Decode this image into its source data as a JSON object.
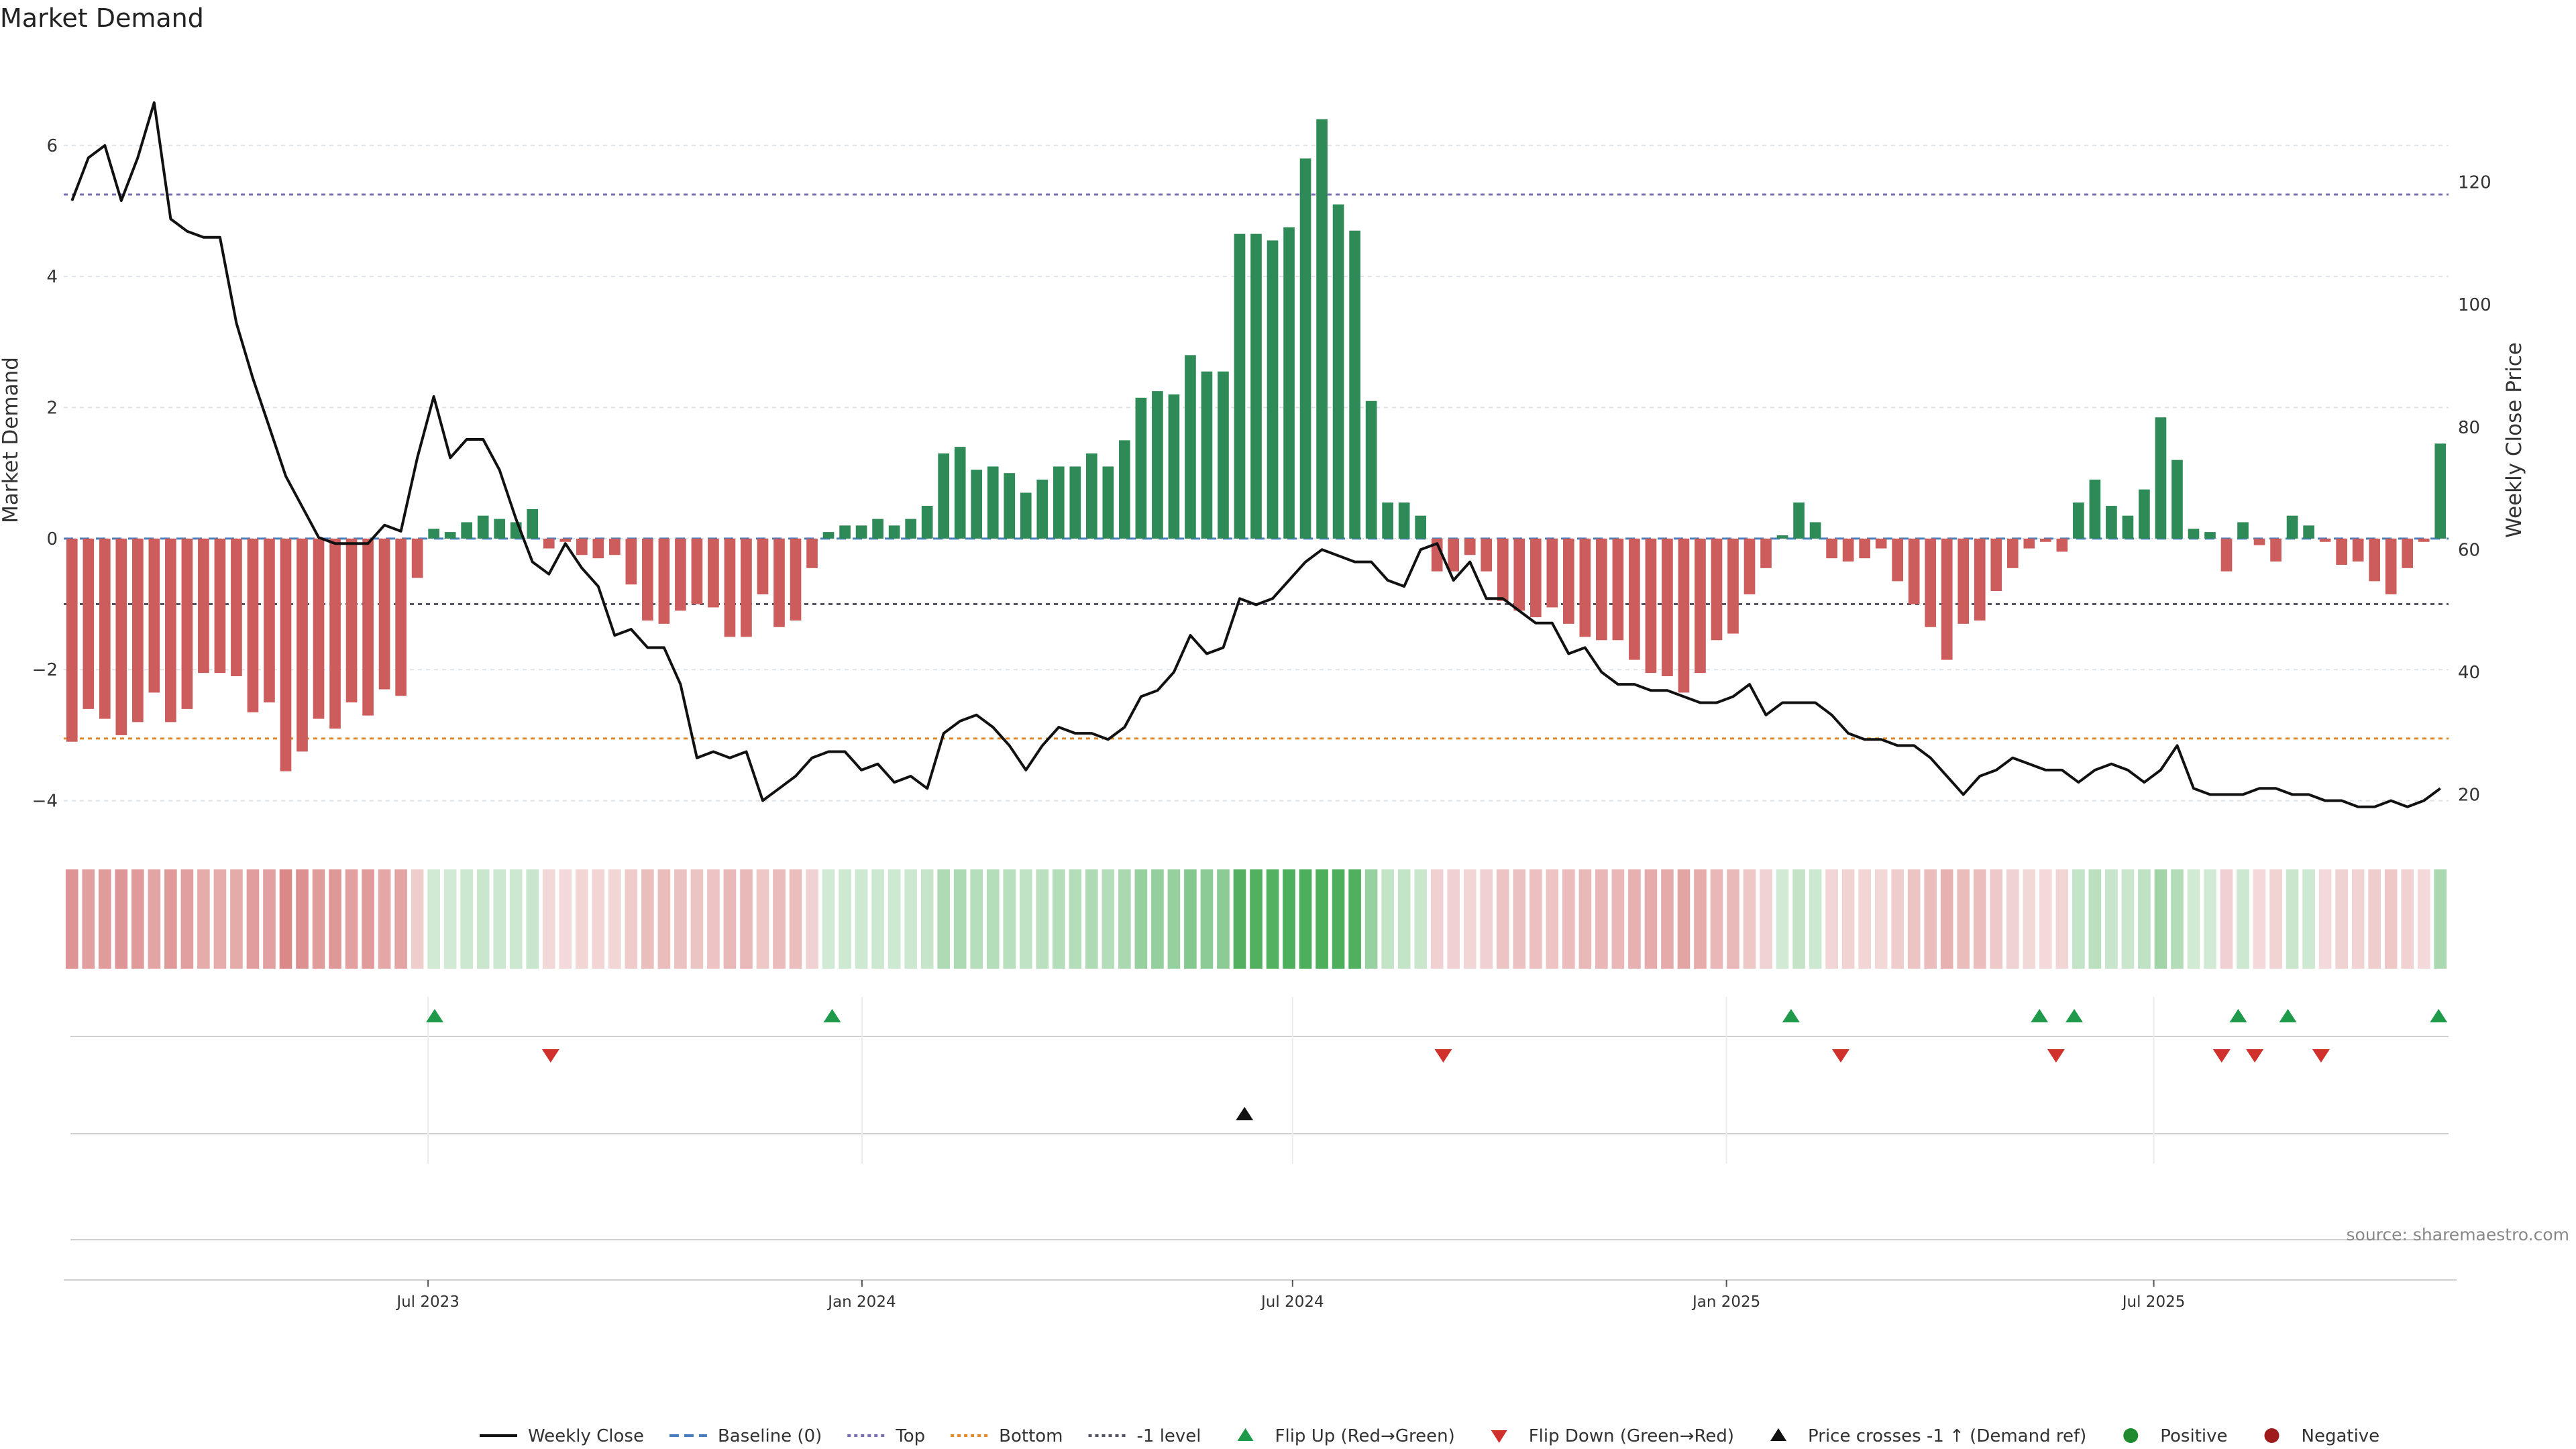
{
  "chart_data": {
    "type": "bar",
    "title": "Market Demand",
    "ylabel": "Market Demand",
    "y2label": "Weekly Close Price",
    "ylim": [
      -4.7,
      7.4
    ],
    "y2lim": [
      11.5,
      141
    ],
    "yticks": [
      -4,
      -2,
      0,
      2,
      4,
      6
    ],
    "y2ticks": [
      20,
      40,
      60,
      80,
      100,
      120
    ],
    "xlim": [
      0,
      144
    ],
    "xticks": [
      {
        "label": "Jul 2023",
        "x": 22
      },
      {
        "label": "Jan 2024",
        "x": 48.2
      },
      {
        "label": "Jul 2024",
        "x": 74.2
      },
      {
        "label": "Jan 2025",
        "x": 100.4
      },
      {
        "label": "Jul 2025",
        "x": 126.2
      }
    ],
    "reference_lines": {
      "top": 5.25,
      "bottom": -3.05,
      "minus_one": -1.0,
      "baseline": 0
    },
    "demand": [
      -3.1,
      -2.6,
      -2.75,
      -3.0,
      -2.8,
      -2.35,
      -2.8,
      -2.6,
      -2.05,
      -2.05,
      -2.1,
      -2.65,
      -2.5,
      -3.55,
      -3.25,
      -2.75,
      -2.9,
      -2.5,
      -2.7,
      -2.3,
      -2.4,
      -0.6,
      0.15,
      0.1,
      0.25,
      0.35,
      0.3,
      0.25,
      0.45,
      -0.15,
      -0.05,
      -0.25,
      -0.3,
      -0.25,
      -0.7,
      -1.25,
      -1.3,
      -1.1,
      -1.0,
      -1.05,
      -1.5,
      -1.5,
      -0.85,
      -1.35,
      -1.25,
      -0.45,
      0.1,
      0.2,
      0.2,
      0.3,
      0.2,
      0.3,
      0.5,
      1.3,
      1.4,
      1.05,
      1.1,
      1.0,
      0.7,
      0.9,
      1.1,
      1.1,
      1.3,
      1.1,
      1.5,
      2.15,
      2.25,
      2.2,
      2.8,
      2.55,
      2.55,
      4.65,
      4.65,
      4.55,
      4.75,
      5.8,
      6.4,
      5.1,
      4.7,
      2.1,
      0.55,
      0.55,
      0.35,
      -0.5,
      -0.5,
      -0.25,
      -0.5,
      -0.95,
      -1.1,
      -1.2,
      -1.05,
      -1.3,
      -1.5,
      -1.55,
      -1.55,
      -1.85,
      -2.05,
      -2.1,
      -2.35,
      -2.05,
      -1.55,
      -1.45,
      -0.85,
      -0.45,
      0.05,
      0.55,
      0.25,
      -0.3,
      -0.35,
      -0.3,
      -0.15,
      -0.65,
      -1.0,
      -1.35,
      -1.85,
      -1.3,
      -1.25,
      -0.8,
      -0.45,
      -0.15,
      -0.05,
      -0.2,
      0.55,
      0.9,
      0.5,
      0.35,
      0.75,
      1.85,
      1.2,
      0.15,
      0.1,
      -0.5,
      0.25,
      -0.1,
      -0.35,
      0.35,
      0.2,
      -0.05,
      -0.4,
      -0.35,
      -0.65,
      -0.85,
      -0.45,
      -0.05,
      1.45
    ],
    "weekly_close": [
      117,
      124,
      126,
      117,
      124,
      133,
      114,
      112,
      111,
      111,
      97,
      88,
      80,
      72,
      67,
      62,
      61,
      61,
      61,
      64,
      63,
      75,
      85,
      75,
      78,
      78,
      73,
      65,
      58,
      56,
      61,
      57,
      54,
      46,
      47,
      44,
      44,
      38,
      26,
      27,
      26,
      27,
      19,
      21,
      23,
      26,
      27,
      27,
      24,
      25,
      22,
      23,
      21,
      30,
      32,
      33,
      31,
      28,
      24,
      28,
      31,
      30,
      30,
      29,
      31,
      36,
      37,
      40,
      46,
      43,
      44,
      52,
      51,
      52,
      55,
      58,
      60,
      59,
      58,
      58,
      55,
      54,
      60,
      61,
      55,
      58,
      52,
      52,
      50,
      48,
      48,
      43,
      44,
      40,
      38,
      38,
      37,
      37,
      36,
      35,
      35,
      36,
      38,
      33,
      35,
      35,
      35,
      33,
      30,
      29,
      29,
      28,
      28,
      26,
      23,
      20,
      23,
      24,
      26,
      25,
      24,
      24,
      22,
      24,
      25,
      24,
      22,
      24,
      28,
      21,
      20,
      20,
      20,
      21,
      21,
      20,
      20,
      19,
      19,
      18,
      18,
      19,
      18,
      19,
      21
    ],
    "flip_up_x": [
      22.4,
      46.4,
      104.3,
      119.3,
      121.4,
      131.3,
      134.3,
      143.4
    ],
    "flip_down_x": [
      29.4,
      83.3,
      107.3,
      120.3,
      130.3,
      132.3,
      136.3
    ],
    "price_cross_x": [
      71.3
    ],
    "source": "source: sharemaestro.com",
    "legend": [
      {
        "label": "Weekly Close",
        "kind": "line",
        "color": "#111111"
      },
      {
        "label": "Baseline (0)",
        "kind": "dash",
        "color": "#4a7ebb"
      },
      {
        "label": "Top",
        "kind": "dot",
        "color": "#7a6fb0"
      },
      {
        "label": "Bottom",
        "kind": "dot",
        "color": "#e0892b"
      },
      {
        "label": "-1 level",
        "kind": "dot",
        "color": "#555566"
      },
      {
        "label": "Flip Up (Red→Green)",
        "kind": "tri-up",
        "color": "#1f9a4a"
      },
      {
        "label": "Flip Down (Green→Red)",
        "kind": "tri-down",
        "color": "#d0312d"
      },
      {
        "label": "Price crosses -1 ↑ (Demand ref)",
        "kind": "tri-up",
        "color": "#111111"
      },
      {
        "label": "Positive",
        "kind": "dot-marker",
        "color": "#1f8a2e"
      },
      {
        "label": "Negative",
        "kind": "dot-marker",
        "color": "#a01c1c"
      }
    ],
    "colors": {
      "positive": "#2e8b57",
      "negative": "#cd5c5c",
      "strip_pos": "#3aa64a",
      "strip_neg": "#cd5c5c"
    }
  }
}
